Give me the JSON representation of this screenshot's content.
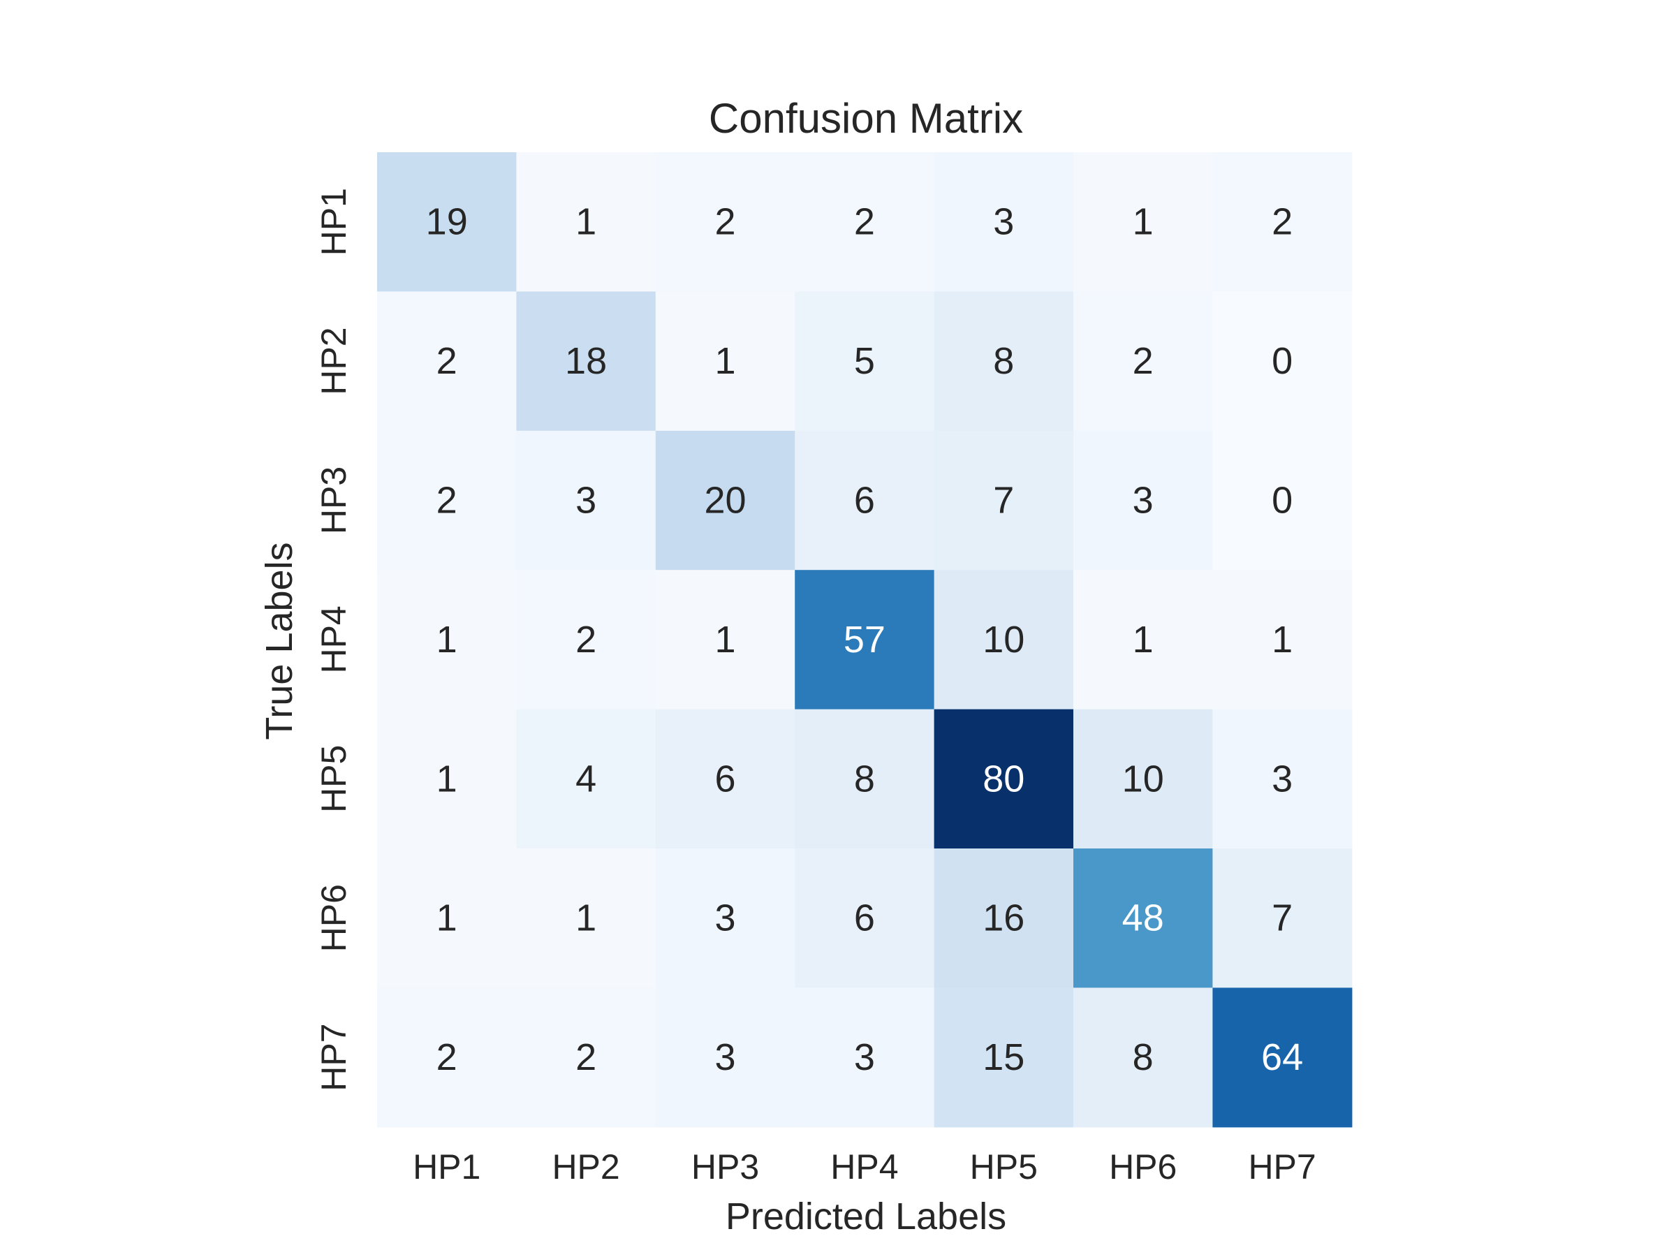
{
  "chart_data": {
    "type": "heatmap",
    "title": "Confusion Matrix",
    "xlabel": "Predicted Labels",
    "ylabel": "True Labels",
    "x_categories": [
      "HP1",
      "HP2",
      "HP3",
      "HP4",
      "HP5",
      "HP6",
      "HP7"
    ],
    "y_categories": [
      "HP1",
      "HP2",
      "HP3",
      "HP4",
      "HP5",
      "HP6",
      "HP7"
    ],
    "values": [
      [
        19,
        1,
        2,
        2,
        3,
        1,
        2
      ],
      [
        2,
        18,
        1,
        5,
        8,
        2,
        0
      ],
      [
        2,
        3,
        20,
        6,
        7,
        3,
        0
      ],
      [
        1,
        2,
        1,
        57,
        10,
        1,
        1
      ],
      [
        1,
        4,
        6,
        8,
        80,
        10,
        3
      ],
      [
        1,
        1,
        3,
        6,
        16,
        48,
        7
      ],
      [
        2,
        2,
        3,
        3,
        15,
        8,
        64
      ]
    ],
    "value_range": [
      0,
      80
    ],
    "colormap": "Blues",
    "colorbar": false,
    "annotated": true
  }
}
